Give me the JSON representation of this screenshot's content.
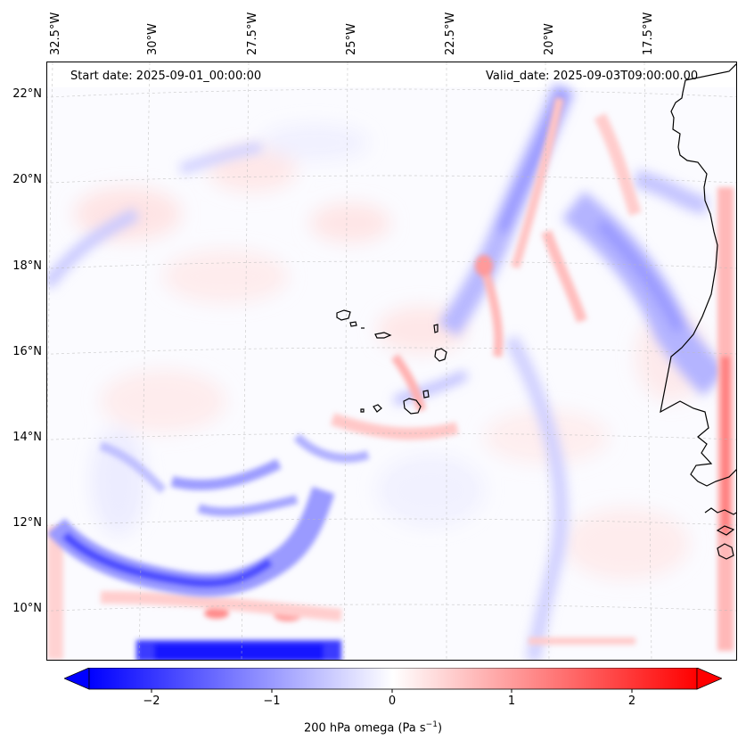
{
  "header": {
    "start_date": "Start date: 2025-09-01_00:00:00",
    "valid_date": "Valid_date: 2025-09-03T09:00:00.00"
  },
  "map": {
    "projection": "conic",
    "lon_labels": [
      "32.5°W",
      "30°W",
      "27.5°W",
      "25°W",
      "22.5°W",
      "20°W",
      "17.5°W"
    ],
    "lat_labels": [
      "22°N",
      "20°N",
      "18°N",
      "16°N",
      "14°N",
      "12°N",
      "10°N"
    ],
    "region": "Cape Verde islands and West African coast (Senegal / Guinea-Bissau)",
    "grid": true,
    "coastlines": true
  },
  "colorbar": {
    "ticks": [
      "−2",
      "−1",
      "0",
      "1",
      "2"
    ],
    "label_prefix": "200 hPa omega (Pa s",
    "label_exp": "−1",
    "label_suffix": ")",
    "range": [
      -2.6,
      2.6
    ],
    "extend": "both",
    "colormap": "bwr",
    "low_color": "#0000ff",
    "mid_color": "#ffffff",
    "high_color": "#ff0000"
  }
}
